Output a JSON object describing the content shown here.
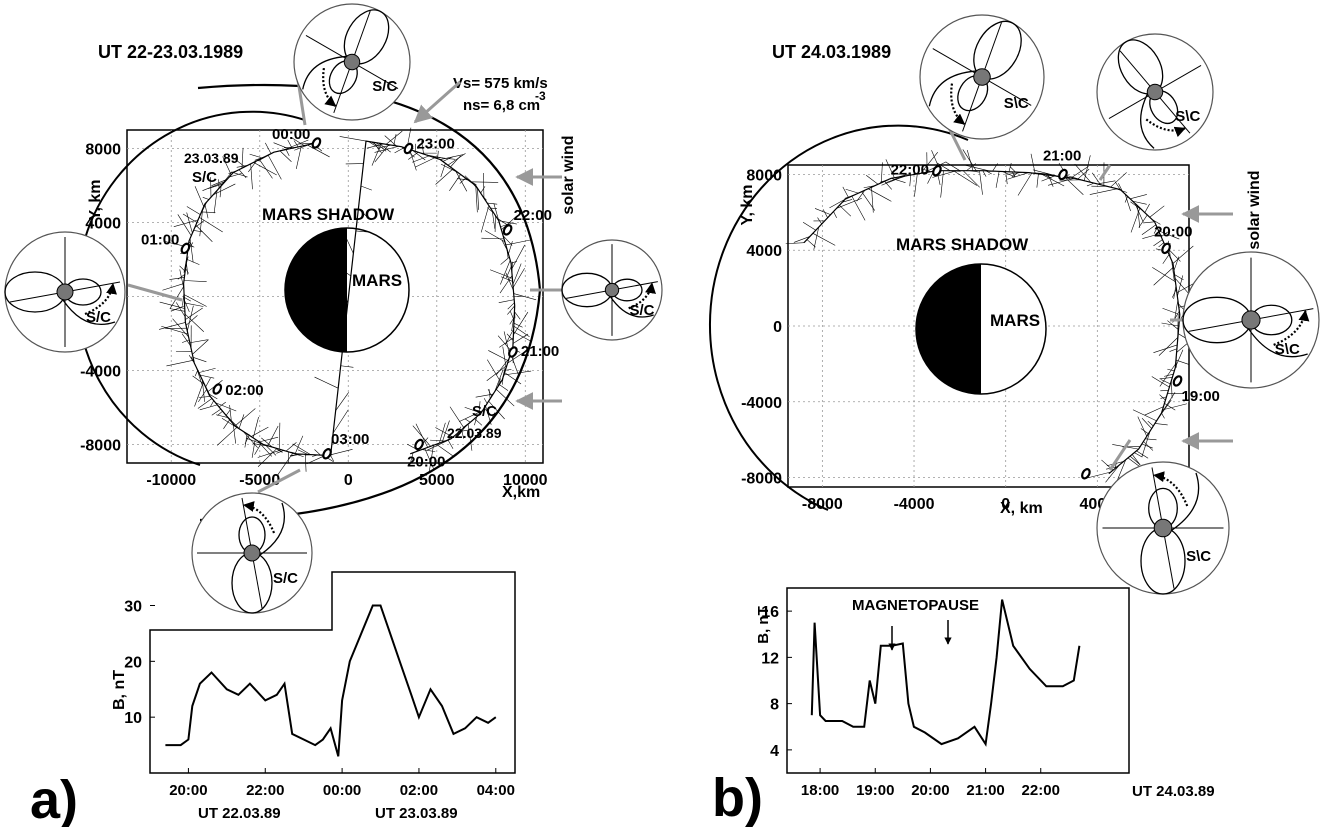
{
  "panel_a": {
    "panel_label": "a)",
    "orbit_plot": {
      "title": "UT 22-23.03.1989",
      "xlabel": "X,km",
      "ylabel": "Y, km",
      "x_ticks": [
        "-10000",
        "-5000",
        "0",
        "5000",
        "10000"
      ],
      "y_ticks": [
        "8000",
        "4000",
        "0",
        "-4000",
        "-8000"
      ],
      "planet_label": "MARS",
      "shadow_label": "MARS SHADOW",
      "solar_wind_label": "solar wind",
      "vs_label": "Vs= 575 km/s",
      "ns_label": "ns= 6,8 cm",
      "ns_exponent": "-3",
      "sc_label": "S/C",
      "start_date": "23.03.89",
      "end_date": "22.03.89",
      "time_marks": [
        "00:00",
        "23:00",
        "01:00",
        "22:00",
        "21:00",
        "02:00",
        "03:00",
        "20:00"
      ]
    },
    "field_plot": {
      "ylabel": "B, nT",
      "y_ticks": [
        "10",
        "20",
        "30"
      ],
      "x_ticks": [
        "20:00",
        "22:00",
        "00:00",
        "02:00",
        "04:00"
      ],
      "date_label_left": "UT 22.03.89",
      "date_label_right": "UT 23.03.89"
    }
  },
  "panel_b": {
    "panel_label": "b)",
    "orbit_plot": {
      "title": "UT 24.03.1989",
      "xlabel": "X, km",
      "ylabel": "Y, km",
      "x_ticks": [
        "-8000",
        "-4000",
        "0",
        "4000"
      ],
      "y_ticks": [
        "8000",
        "4000",
        "0",
        "-4000",
        "-8000"
      ],
      "planet_label": "MARS",
      "shadow_label": "MARS SHADOW",
      "solar_wind_label": "solar wind",
      "sc_label": "S\\C",
      "time_marks": [
        "22:00",
        "21:00",
        "20:00",
        "19:00"
      ]
    },
    "field_plot": {
      "ylabel": "B, nT",
      "annotation": "MAGNETOPAUSE",
      "y_ticks": [
        "16",
        "12",
        "8",
        "4"
      ],
      "x_ticks": [
        "18:00",
        "19:00",
        "20:00",
        "21:00",
        "22:00"
      ],
      "date_label": "UT 24.03.89"
    }
  },
  "chart_data": [
    {
      "type": "scatter",
      "title": "UT 22-23.03.1989",
      "xlabel": "X,km",
      "ylabel": "Y, km",
      "xlim": [
        -12500,
        11000
      ],
      "ylim": [
        -9000,
        9000
      ],
      "series": [
        {
          "x": [
            -1800,
            -4200,
            -6500,
            -8100,
            -9000,
            -9300,
            -9200,
            -8700,
            -7800,
            -6400,
            -4800,
            -3000,
            -1000,
            1000,
            3000,
            5200,
            7200,
            8500,
            9200,
            9400,
            9300,
            8700,
            7500,
            5800,
            3500
          ],
          "y": [
            8300,
            7800,
            6700,
            5000,
            3000,
            700,
            -1400,
            -3600,
            -5400,
            -7000,
            -8000,
            -8500,
            -8600,
            8400,
            8100,
            7400,
            6000,
            4100,
            1800,
            -500,
            -2700,
            -4500,
            -6300,
            -7700,
            -8500
          ]
        }
      ],
      "markers": [
        {
          "label": "00:00",
          "x": -1800,
          "y": 8300
        },
        {
          "label": "23:00",
          "x": 3400,
          "y": 8000
        },
        {
          "label": "01:00",
          "x": -9200,
          "y": 2600
        },
        {
          "label": "22:00",
          "x": 9000,
          "y": 3600
        },
        {
          "label": "21:00",
          "x": 9300,
          "y": -3000
        },
        {
          "label": "02:00",
          "x": -7400,
          "y": -5000
        },
        {
          "label": "03:00",
          "x": -1200,
          "y": -8500
        },
        {
          "label": "20:00",
          "x": 4000,
          "y": -8000
        }
      ]
    },
    {
      "type": "scatter",
      "title": "UT 24.03.1989",
      "xlabel": "X, km",
      "ylabel": "Y, km",
      "xlim": [
        -9500,
        8000
      ],
      "ylim": [
        -8500,
        8500
      ],
      "series": [
        {
          "x": [
            -8800,
            -7000,
            -5000,
            -3000,
            -1000,
            1000,
            3000,
            5000,
            6500,
            7300,
            7600,
            7400,
            6800,
            5800,
            4500
          ],
          "y": [
            4400,
            6700,
            7800,
            8200,
            8200,
            8100,
            7800,
            7200,
            5500,
            3300,
            600,
            -2200,
            -4600,
            -6500,
            -7800
          ]
        }
      ],
      "markers": [
        {
          "label": "22:00",
          "x": -3000,
          "y": 8200
        },
        {
          "label": "21:00",
          "x": 2500,
          "y": 8000
        },
        {
          "label": "20:00",
          "x": 7000,
          "y": 4100
        },
        {
          "label": "19:00",
          "x": 7500,
          "y": -2900
        },
        {
          "label": "",
          "x": 3500,
          "y": -7800
        }
      ]
    },
    {
      "type": "line",
      "xlabel": "",
      "ylabel": "B, nT",
      "xlim": [
        19.0,
        28.5
      ],
      "ylim": [
        0,
        36
      ],
      "series": [
        {
          "x": [
            19.4,
            19.8,
            20.0,
            20.1,
            20.3,
            20.6,
            21.0,
            21.3,
            21.6,
            22.0,
            22.3,
            22.5,
            22.7,
            23.0,
            23.3,
            23.5,
            23.7,
            23.9,
            24.0,
            24.2,
            24.5,
            24.8,
            25.0,
            25.2,
            25.5,
            25.8,
            26.0,
            26.3,
            26.6,
            26.9,
            27.2,
            27.5,
            27.8,
            28.0
          ],
          "y": [
            5,
            5,
            6,
            12,
            16,
            18,
            15,
            14,
            16,
            13,
            14,
            16,
            7,
            6,
            5,
            6,
            8,
            3,
            13,
            20,
            25,
            30,
            30,
            26,
            20,
            14,
            10,
            15,
            12,
            7,
            8,
            10,
            9,
            10
          ]
        }
      ]
    },
    {
      "type": "line",
      "xlabel": "",
      "ylabel": "B, nT",
      "annotation": "MAGNETOPAUSE",
      "xlim": [
        17.4,
        23.6
      ],
      "ylim": [
        2,
        18
      ],
      "series": [
        {
          "x": [
            17.85,
            17.9,
            18.0,
            18.1,
            18.4,
            18.6,
            18.8,
            18.9,
            19.0,
            19.1,
            19.3,
            19.5,
            19.6,
            19.7,
            19.9,
            20.2,
            20.5,
            20.8,
            21.0,
            21.1,
            21.2,
            21.3,
            21.5,
            21.8,
            22.1,
            22.4,
            22.6,
            22.7
          ],
          "y": [
            7,
            15,
            7,
            6.5,
            6.5,
            6,
            6,
            10,
            8,
            13,
            13,
            13.2,
            8,
            6,
            5.5,
            4.5,
            5,
            6,
            4.5,
            8,
            12,
            17,
            13,
            11,
            9.5,
            9.5,
            10,
            13
          ]
        }
      ]
    }
  ]
}
